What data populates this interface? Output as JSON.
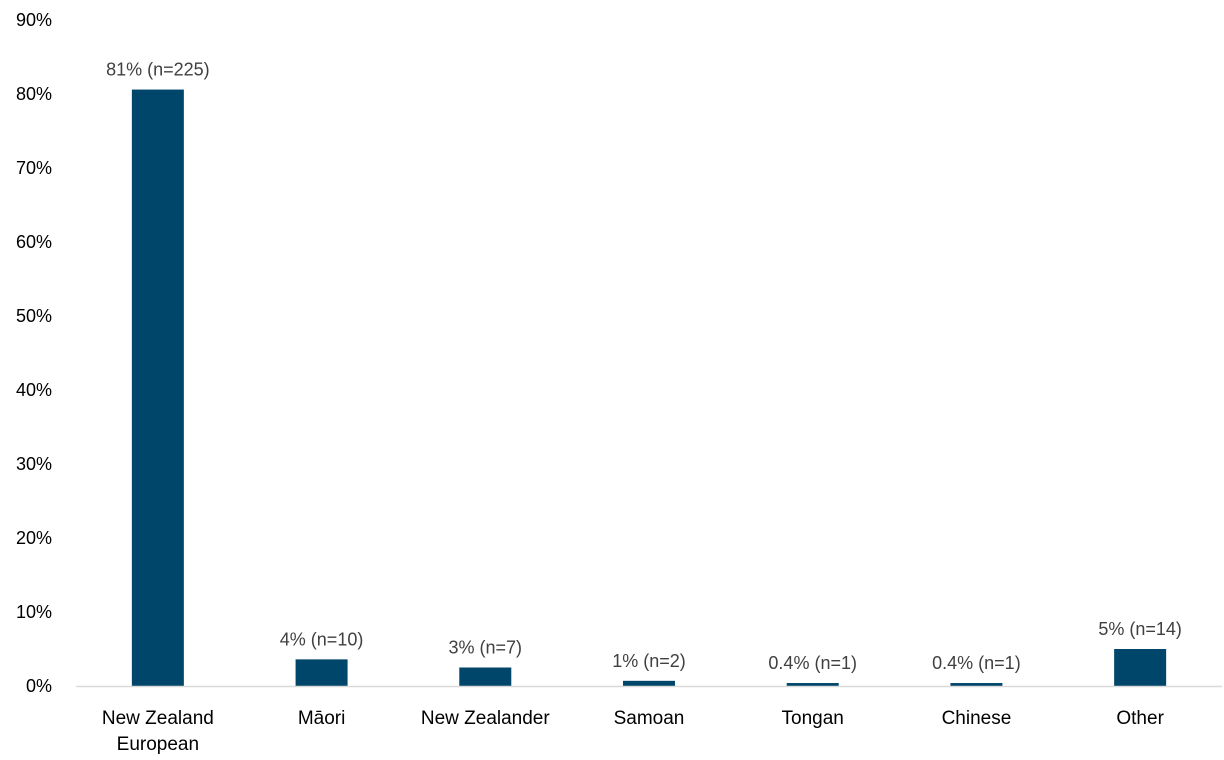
{
  "chart_data": {
    "type": "bar",
    "categories": [
      [
        "New Zealand",
        "European"
      ],
      [
        "Māori"
      ],
      [
        "New Zealander"
      ],
      [
        "Samoan"
      ],
      [
        "Tongan"
      ],
      [
        "Chinese"
      ],
      [
        "Other"
      ]
    ],
    "values": [
      80.6,
      3.6,
      2.5,
      0.7,
      0.4,
      0.4,
      5.0
    ],
    "data_labels": [
      "81% (n=225)",
      "4% (n=10)",
      "3% (n=7)",
      "1% (n=2)",
      "0.4% (n=1)",
      "0.4% (n=1)",
      "5% (n=14)"
    ],
    "ylim": [
      0,
      90
    ],
    "yticks": [
      0,
      10,
      20,
      30,
      40,
      50,
      60,
      70,
      80,
      90
    ],
    "ytick_labels": [
      "0%",
      "10%",
      "20%",
      "30%",
      "40%",
      "50%",
      "60%",
      "70%",
      "80%",
      "90%"
    ],
    "grid": false,
    "bar_color": "#00466a",
    "axis_color": "#d9d9d9"
  }
}
